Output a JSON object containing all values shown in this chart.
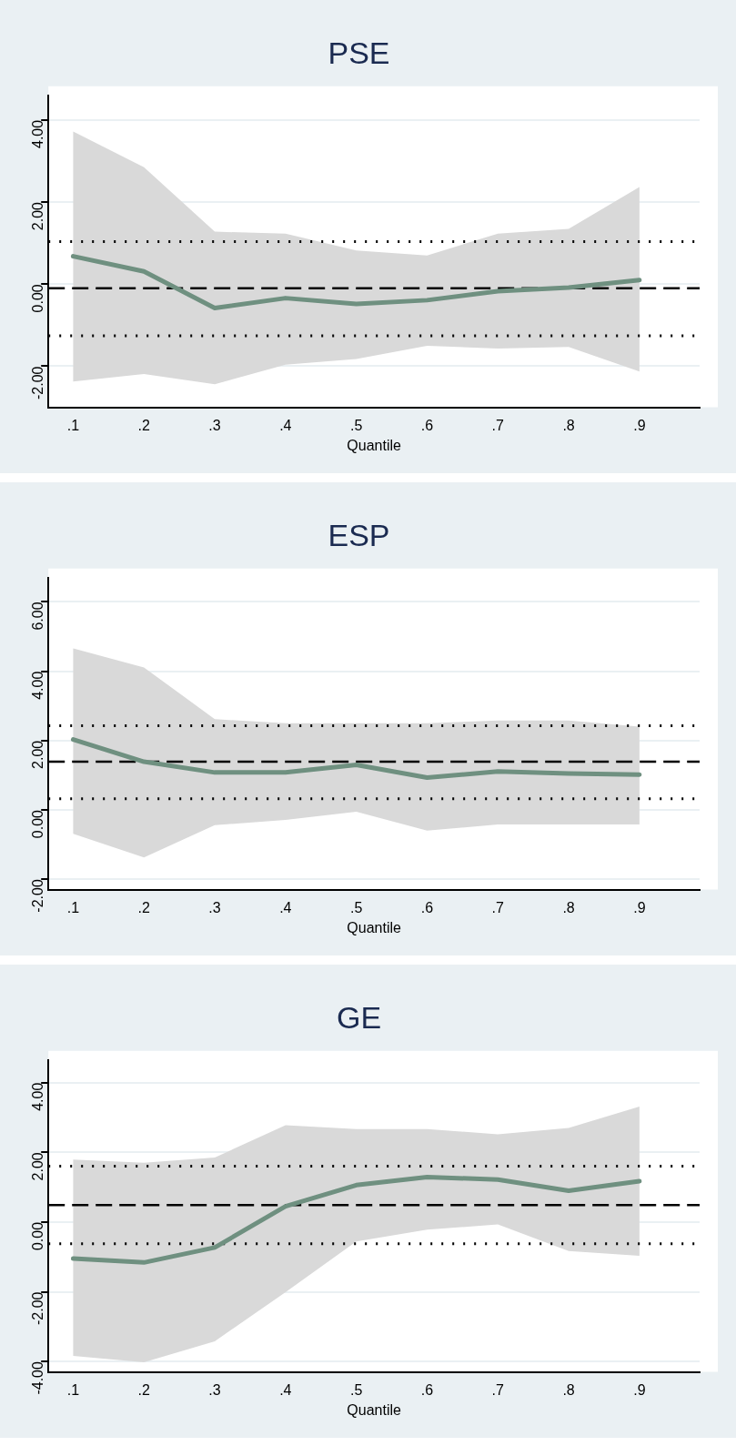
{
  "chart_data": [
    {
      "type": "line",
      "title": "PSE",
      "xlabel": "Quantile",
      "x": [
        0.1,
        0.2,
        0.3,
        0.4,
        0.5,
        0.6,
        0.7,
        0.8,
        0.9
      ],
      "series": [
        {
          "color": "#6f9080",
          "values": [
            0.68,
            0.31,
            -0.58,
            -0.34,
            -0.48,
            -0.39,
            -0.17,
            -0.08,
            0.1
          ],
          "lower": [
            -2.37,
            -2.19,
            -2.44,
            -1.96,
            -1.82,
            -1.5,
            -1.57,
            -1.53,
            -2.13
          ],
          "upper": [
            3.72,
            2.85,
            1.28,
            1.23,
            0.82,
            0.7,
            1.23,
            1.35,
            2.37
          ]
        }
      ],
      "ref_lines": [
        {
          "axis": "y",
          "value": -0.1,
          "line_style": "dashed",
          "color": "#000000"
        },
        {
          "axis": "y",
          "value": 1.04,
          "line_style": "dotted",
          "color": "#000000"
        },
        {
          "axis": "y",
          "value": -1.26,
          "line_style": "dotted",
          "color": "#000000"
        }
      ],
      "xlim": [
        0.065,
        0.985
      ],
      "xticks": [
        {
          "value": 0.1,
          "label": ".1"
        },
        {
          "value": 0.2,
          "label": ".2"
        },
        {
          "value": 0.3,
          "label": ".3"
        },
        {
          "value": 0.4,
          "label": ".4"
        },
        {
          "value": 0.5,
          "label": ".5"
        },
        {
          "value": 0.6,
          "label": ".6"
        },
        {
          "value": 0.7,
          "label": ".7"
        },
        {
          "value": 0.8,
          "label": ".8"
        },
        {
          "value": 0.9,
          "label": ".9"
        }
      ],
      "ylim": [
        -3.0,
        4.6
      ],
      "yticks": [
        {
          "value": -2,
          "label": "-2.00"
        },
        {
          "value": 0,
          "label": "0.00"
        },
        {
          "value": 2,
          "label": "2.00"
        },
        {
          "value": 4,
          "label": "4.00"
        }
      ],
      "grid": "y",
      "line_style": "solid",
      "marker": "none"
    },
    {
      "type": "line",
      "title": "ESP",
      "xlabel": "Quantile",
      "x": [
        0.1,
        0.2,
        0.3,
        0.4,
        0.5,
        0.6,
        0.7,
        0.8,
        0.9
      ],
      "series": [
        {
          "color": "#6f9080",
          "values": [
            2.03,
            1.39,
            1.08,
            1.08,
            1.3,
            0.93,
            1.11,
            1.05,
            1.02
          ],
          "lower": [
            -0.69,
            -1.37,
            -0.44,
            -0.29,
            -0.05,
            -0.6,
            -0.42,
            -0.42,
            -0.42
          ],
          "upper": [
            4.66,
            4.11,
            2.62,
            2.5,
            2.5,
            2.5,
            2.58,
            2.58,
            2.4
          ]
        }
      ],
      "ref_lines": [
        {
          "axis": "y",
          "value": 1.39,
          "line_style": "dashed",
          "color": "#000000"
        },
        {
          "axis": "y",
          "value": 2.43,
          "line_style": "dotted",
          "color": "#000000"
        },
        {
          "axis": "y",
          "value": 0.32,
          "line_style": "dotted",
          "color": "#000000"
        }
      ],
      "xlim": [
        0.065,
        0.985
      ],
      "xticks": [
        {
          "value": 0.1,
          "label": ".1"
        },
        {
          "value": 0.2,
          "label": ".2"
        },
        {
          "value": 0.3,
          "label": ".3"
        },
        {
          "value": 0.4,
          "label": ".4"
        },
        {
          "value": 0.5,
          "label": ".5"
        },
        {
          "value": 0.6,
          "label": ".6"
        },
        {
          "value": 0.7,
          "label": ".7"
        },
        {
          "value": 0.8,
          "label": ".8"
        },
        {
          "value": 0.9,
          "label": ".9"
        }
      ],
      "ylim": [
        -2.3,
        6.7
      ],
      "yticks": [
        {
          "value": -2,
          "label": "-2.00"
        },
        {
          "value": 0,
          "label": "0.00"
        },
        {
          "value": 2,
          "label": "2.00"
        },
        {
          "value": 4,
          "label": "4.00"
        },
        {
          "value": 6,
          "label": "6.00"
        }
      ],
      "grid": "y",
      "line_style": "solid",
      "marker": "none"
    },
    {
      "type": "line",
      "title": "GE",
      "xlabel": "Quantile",
      "x": [
        0.1,
        0.2,
        0.3,
        0.4,
        0.5,
        0.6,
        0.7,
        0.8,
        0.9
      ],
      "series": [
        {
          "color": "#6f9080",
          "values": [
            -1.05,
            -1.16,
            -0.73,
            0.45,
            1.06,
            1.29,
            1.22,
            0.9,
            1.17
          ],
          "lower": [
            -3.84,
            -4.02,
            -3.42,
            -2.01,
            -0.56,
            -0.22,
            -0.07,
            -0.83,
            -0.97
          ],
          "upper": [
            1.79,
            1.7,
            1.85,
            2.78,
            2.67,
            2.67,
            2.52,
            2.7,
            3.31
          ]
        }
      ],
      "ref_lines": [
        {
          "axis": "y",
          "value": 0.49,
          "line_style": "dashed",
          "color": "#000000"
        },
        {
          "axis": "y",
          "value": 1.6,
          "line_style": "dotted",
          "color": "#000000"
        },
        {
          "axis": "y",
          "value": -0.62,
          "line_style": "dotted",
          "color": "#000000"
        }
      ],
      "xlim": [
        0.065,
        0.985
      ],
      "xticks": [
        {
          "value": 0.1,
          "label": ".1"
        },
        {
          "value": 0.2,
          "label": ".2"
        },
        {
          "value": 0.3,
          "label": ".3"
        },
        {
          "value": 0.4,
          "label": ".4"
        },
        {
          "value": 0.5,
          "label": ".5"
        },
        {
          "value": 0.6,
          "label": ".6"
        },
        {
          "value": 0.7,
          "label": ".7"
        },
        {
          "value": 0.8,
          "label": ".8"
        },
        {
          "value": 0.9,
          "label": ".9"
        }
      ],
      "ylim": [
        -4.3,
        4.65
      ],
      "yticks": [
        {
          "value": -4,
          "label": "-4.00"
        },
        {
          "value": -2,
          "label": "-2.00"
        },
        {
          "value": 0,
          "label": "0.00"
        },
        {
          "value": 2,
          "label": "2.00"
        },
        {
          "value": 4,
          "label": "4.00"
        }
      ],
      "grid": "y",
      "line_style": "solid",
      "marker": "none"
    }
  ]
}
